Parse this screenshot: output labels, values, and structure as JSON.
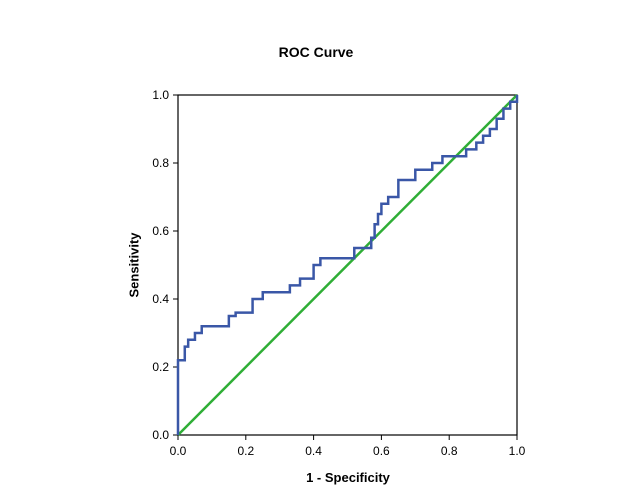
{
  "chart_data": {
    "type": "line",
    "title": "ROC Curve",
    "xlabel": "1 - Specificity",
    "ylabel": "Sensitivity",
    "xlim": [
      0,
      1
    ],
    "ylim": [
      0,
      1
    ],
    "xticks": [
      0,
      0.2,
      0.4,
      0.6,
      0.8,
      1.0
    ],
    "xtick_labels": [
      "0.0",
      "0.2",
      "0.4",
      "0.6",
      "0.8",
      "1.0"
    ],
    "yticks": [
      0,
      0.2,
      0.4,
      0.6,
      0.8,
      1.0
    ],
    "ytick_labels": [
      "0.0",
      "0.2",
      "0.4",
      "0.6",
      "0.8",
      "1.0"
    ],
    "grid": false,
    "legend_position": "none",
    "series": [
      {
        "name": "Reference line",
        "id": "reference-line",
        "color": "#2fae36",
        "line_width": 2.5,
        "points": [
          [
            0,
            0
          ],
          [
            1,
            1
          ]
        ]
      },
      {
        "name": "ROC curve",
        "id": "roc-curve-line",
        "color": "#3a57a7",
        "line_width": 2.5,
        "points": [
          [
            0,
            0
          ],
          [
            0,
            0.22
          ],
          [
            0.02,
            0.22
          ],
          [
            0.02,
            0.26
          ],
          [
            0.03,
            0.26
          ],
          [
            0.03,
            0.28
          ],
          [
            0.05,
            0.28
          ],
          [
            0.05,
            0.3
          ],
          [
            0.07,
            0.3
          ],
          [
            0.07,
            0.32
          ],
          [
            0.15,
            0.32
          ],
          [
            0.15,
            0.35
          ],
          [
            0.17,
            0.35
          ],
          [
            0.17,
            0.36
          ],
          [
            0.22,
            0.36
          ],
          [
            0.22,
            0.4
          ],
          [
            0.25,
            0.4
          ],
          [
            0.25,
            0.42
          ],
          [
            0.33,
            0.42
          ],
          [
            0.33,
            0.44
          ],
          [
            0.36,
            0.44
          ],
          [
            0.36,
            0.46
          ],
          [
            0.4,
            0.46
          ],
          [
            0.4,
            0.5
          ],
          [
            0.42,
            0.5
          ],
          [
            0.42,
            0.52
          ],
          [
            0.52,
            0.52
          ],
          [
            0.52,
            0.55
          ],
          [
            0.57,
            0.55
          ],
          [
            0.57,
            0.58
          ],
          [
            0.58,
            0.58
          ],
          [
            0.58,
            0.62
          ],
          [
            0.59,
            0.62
          ],
          [
            0.59,
            0.65
          ],
          [
            0.6,
            0.65
          ],
          [
            0.6,
            0.68
          ],
          [
            0.62,
            0.68
          ],
          [
            0.62,
            0.7
          ],
          [
            0.65,
            0.7
          ],
          [
            0.65,
            0.75
          ],
          [
            0.7,
            0.75
          ],
          [
            0.7,
            0.78
          ],
          [
            0.75,
            0.78
          ],
          [
            0.75,
            0.8
          ],
          [
            0.78,
            0.8
          ],
          [
            0.78,
            0.82
          ],
          [
            0.85,
            0.82
          ],
          [
            0.85,
            0.84
          ],
          [
            0.88,
            0.84
          ],
          [
            0.88,
            0.86
          ],
          [
            0.9,
            0.86
          ],
          [
            0.9,
            0.88
          ],
          [
            0.92,
            0.88
          ],
          [
            0.92,
            0.9
          ],
          [
            0.94,
            0.9
          ],
          [
            0.94,
            0.93
          ],
          [
            0.96,
            0.93
          ],
          [
            0.96,
            0.96
          ],
          [
            0.98,
            0.96
          ],
          [
            0.98,
            0.98
          ],
          [
            1.0,
            0.98
          ],
          [
            1.0,
            1.0
          ]
        ]
      }
    ]
  }
}
